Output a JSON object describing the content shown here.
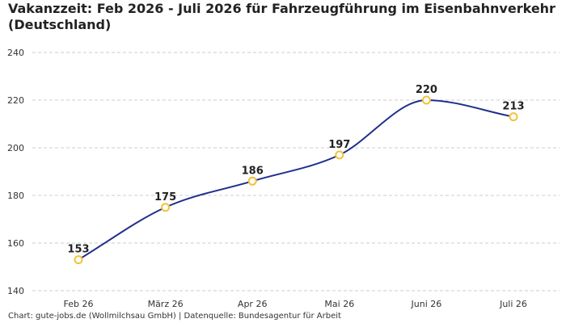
{
  "chart_data": {
    "type": "line",
    "title": "Vakanzzeit: Feb 2026 - Juli 2026 für Fahrzeugführung im Eisenbahnverkehr (Deutschland)",
    "categories": [
      "Feb 26",
      "März 26",
      "Apr 26",
      "Mai 26",
      "Juni 26",
      "Juli 26"
    ],
    "series": [
      {
        "values": [
          153,
          175,
          186,
          197,
          220,
          213
        ]
      }
    ],
    "ylim": [
      140,
      240
    ],
    "yticks": [
      140,
      160,
      180,
      200,
      220,
      240
    ],
    "xlabel": "",
    "ylabel": "",
    "grid": true,
    "smooth": true,
    "data_labels": true,
    "colors": {
      "line": "#1f2f8c",
      "marker_stroke": "#f2c23a",
      "marker_fill": "#ffffff",
      "grid": "#cccccc"
    }
  },
  "footer": {
    "text": "Chart: gute-jobs.de (Wollmilchsau GmbH) | Datenquelle: Bundesagentur für Arbeit"
  }
}
